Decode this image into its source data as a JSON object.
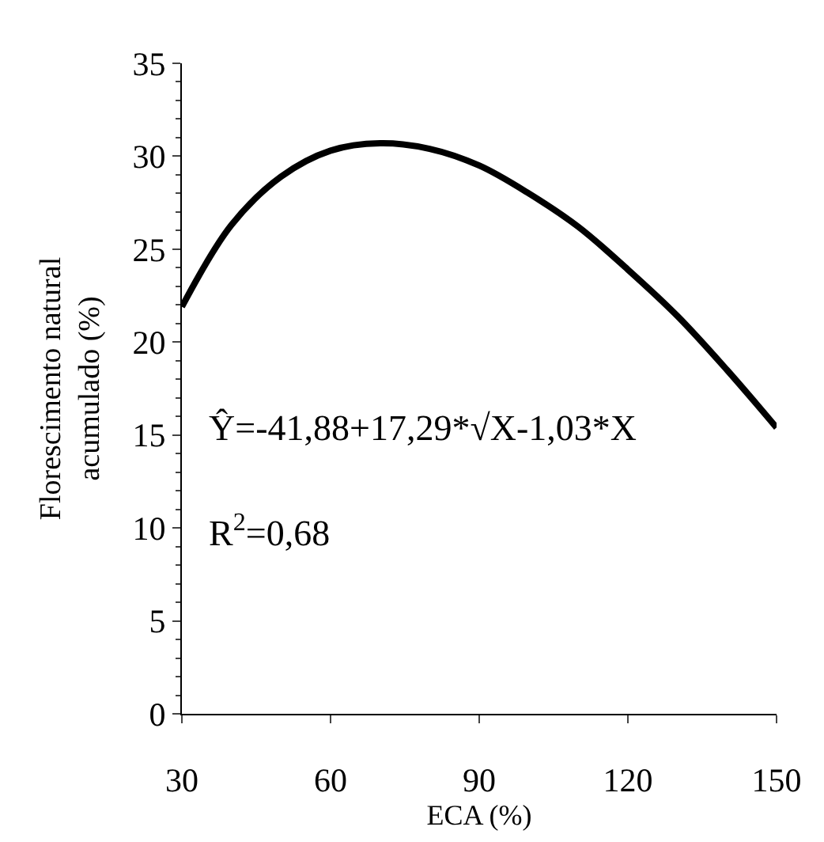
{
  "chart_data": {
    "type": "line",
    "xlabel": "ECA (%)",
    "ylabel": "Florescimento natural\nacumulado (%)",
    "x": [
      30,
      40,
      50,
      60,
      70,
      80,
      90,
      100,
      110,
      120,
      130,
      140,
      150
    ],
    "series": [
      {
        "color": "#000000",
        "values": [
          21.9,
          26.3,
          28.9,
          30.3,
          30.7,
          30.4,
          29.5,
          28.0,
          26.2,
          23.9,
          21.4,
          18.5,
          15.4
        ]
      }
    ],
    "xlim": [
      30,
      150
    ],
    "xticks": [
      30,
      60,
      90,
      120,
      150
    ],
    "ylim": [
      0,
      35
    ],
    "yticks": [
      0,
      5,
      10,
      15,
      20,
      25,
      30,
      35
    ],
    "annotations": [
      "Ŷ=-41,88+17,29*√X-1,03*X",
      "R$^{2}$=0,68"
    ],
    "grid": false,
    "legend": false,
    "marker": "none",
    "line_style": "solid"
  }
}
